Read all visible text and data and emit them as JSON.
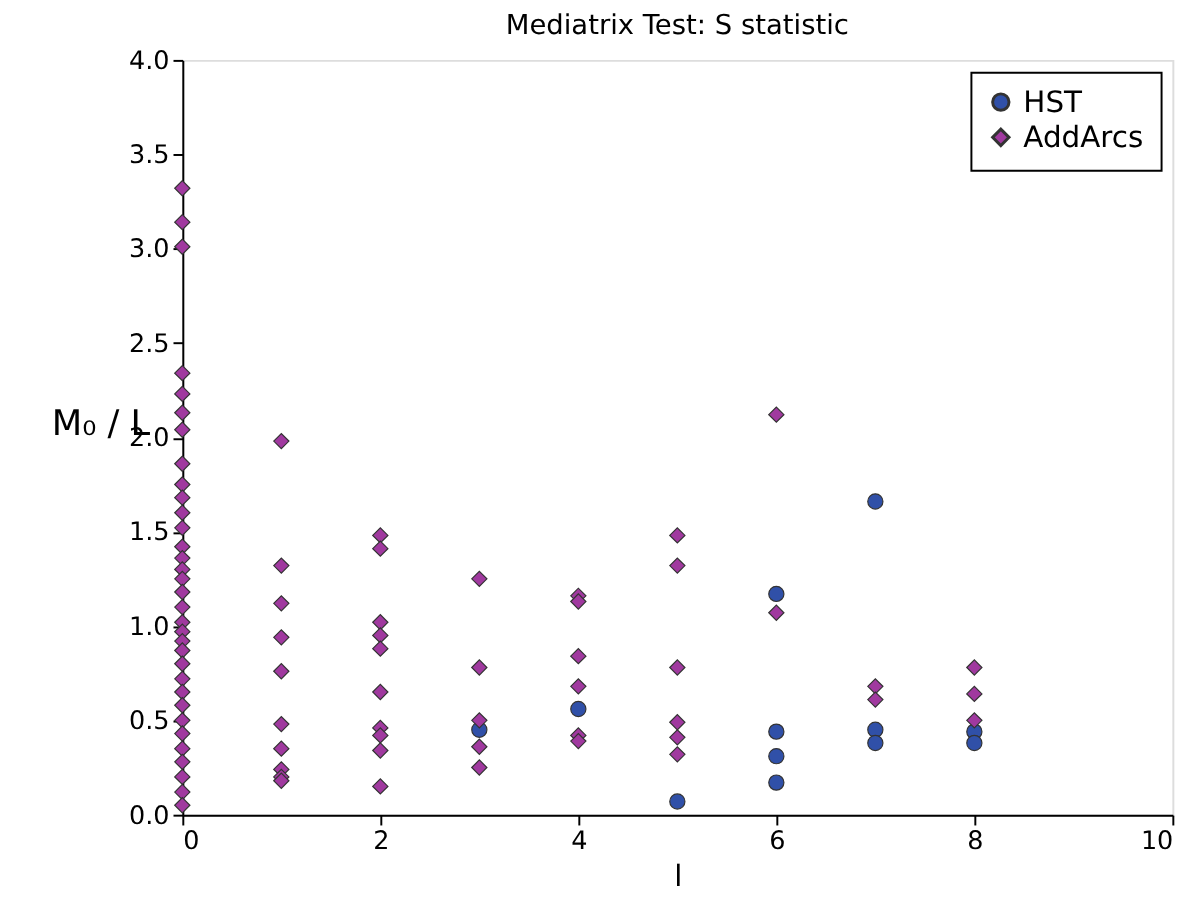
{
  "chart_data": {
    "type": "scatter",
    "title": "Mediatrix Test: S statistic",
    "xlabel": "l",
    "ylabel": "M₀ / L",
    "xlim": [
      0,
      10
    ],
    "xticks": [
      0,
      2,
      4,
      6,
      8,
      10
    ],
    "ylim": [
      0,
      4
    ],
    "yticks": [
      {
        "value": 0,
        "label": "0.0"
      },
      0.5,
      {
        "value": 1,
        "label": "1.0"
      },
      1.5,
      {
        "value": 2,
        "label": "2.0"
      },
      2.5,
      {
        "value": 3,
        "label": "3.0"
      },
      3.5,
      {
        "value": 4,
        "label": "4.0"
      }
    ],
    "grid": false,
    "legend": "top right",
    "series": [
      {
        "name": "HST",
        "color": "#3050a8",
        "marker": "circle",
        "x": [
          3,
          4,
          5,
          6,
          6,
          6,
          6,
          7,
          7,
          7,
          8,
          8
        ],
        "values": [
          0.45,
          0.56,
          0.07,
          1.17,
          0.44,
          0.31,
          0.17,
          1.66,
          0.45,
          0.38,
          0.44,
          0.38
        ]
      },
      {
        "name": "AddArcs",
        "color": "#a0399f",
        "marker": "diamond",
        "x": [
          0,
          0,
          0,
          0,
          0,
          0,
          0,
          0,
          0,
          0,
          0,
          0,
          0,
          0,
          0,
          0,
          0,
          0,
          0,
          0,
          0,
          0,
          0,
          0,
          0,
          0,
          0,
          0,
          0,
          0,
          0,
          0,
          0,
          1,
          1,
          1,
          1,
          1,
          1,
          1,
          1,
          1,
          1,
          2,
          2,
          2,
          2,
          2,
          2,
          2,
          2,
          2,
          2,
          3,
          3,
          3,
          3,
          3,
          4,
          4,
          4,
          4,
          4,
          4,
          5,
          5,
          5,
          5,
          5,
          5,
          6,
          6,
          7,
          7,
          8,
          8,
          8
        ],
        "values": [
          3.32,
          3.14,
          3.01,
          2.34,
          2.23,
          2.13,
          2.04,
          1.86,
          1.75,
          1.68,
          1.6,
          1.52,
          1.42,
          1.36,
          1.3,
          1.25,
          1.18,
          1.1,
          1.02,
          0.97,
          0.92,
          0.87,
          0.8,
          0.72,
          0.65,
          0.58,
          0.5,
          0.43,
          0.35,
          0.28,
          0.2,
          0.12,
          0.05,
          1.98,
          1.32,
          1.12,
          0.94,
          0.76,
          0.48,
          0.35,
          0.24,
          0.2,
          0.18,
          1.48,
          1.41,
          1.02,
          0.95,
          0.88,
          0.65,
          0.46,
          0.42,
          0.34,
          0.15,
          1.25,
          0.78,
          0.5,
          0.36,
          0.25,
          1.16,
          1.13,
          0.84,
          0.68,
          0.42,
          0.39,
          1.48,
          1.32,
          0.78,
          0.49,
          0.41,
          0.32,
          2.12,
          1.07,
          0.68,
          0.61,
          0.78,
          0.64,
          0.5
        ]
      }
    ]
  }
}
